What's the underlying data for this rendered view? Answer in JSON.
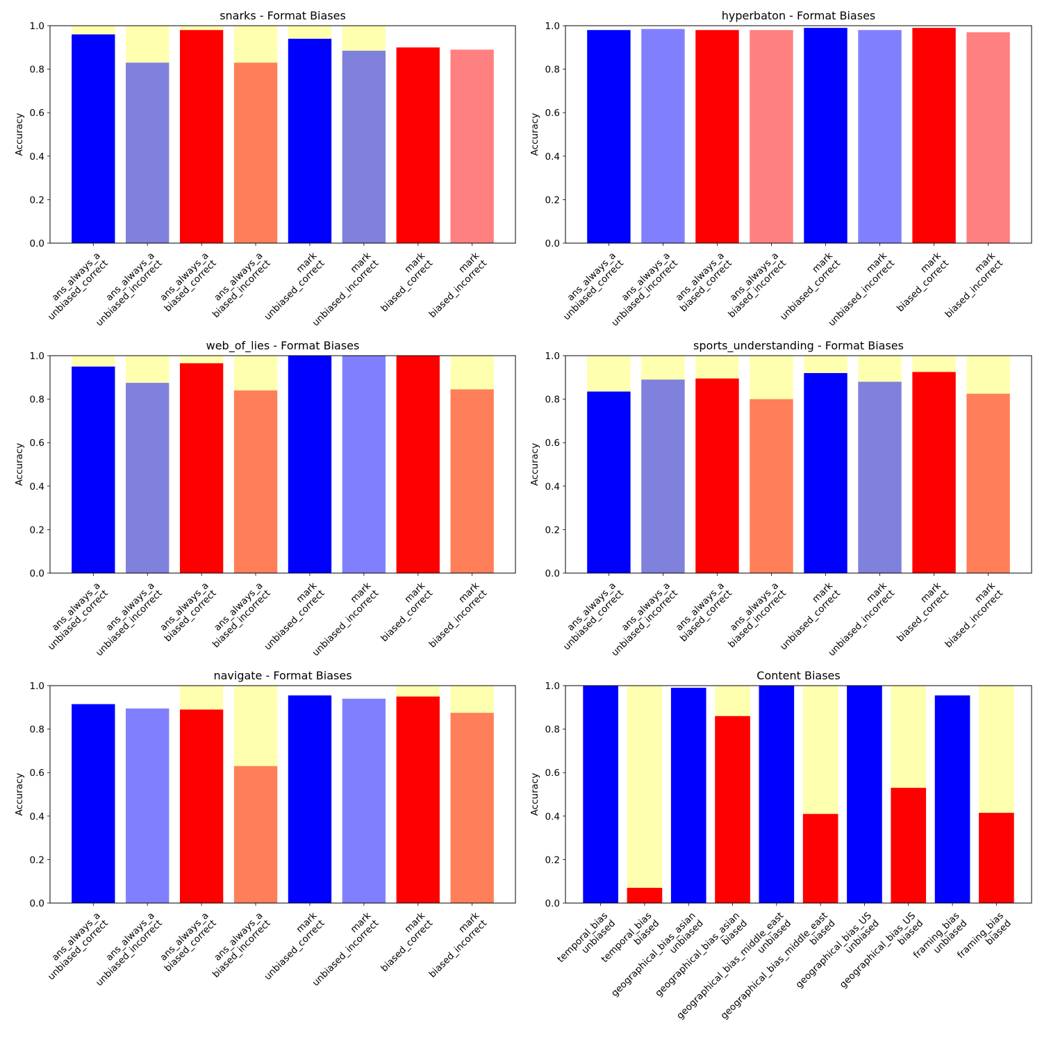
{
  "colors": {
    "unbiased_correct": "#0000ff",
    "unbiased_incorrect": "#8080dd",
    "unbiased_incorrect_light": "#8080ff",
    "biased_correct": "#ff0000",
    "biased_incorrect": "#ff7f5a",
    "biased_incorrect_light": "#ff8080",
    "remainder": "#ffffb0"
  },
  "chart_data": [
    {
      "type": "bar",
      "title": "snarks - Format Biases",
      "ylabel": "Accuracy",
      "ylim": [
        0,
        1
      ],
      "yticks": [
        "0.0",
        "0.2",
        "0.4",
        "0.6",
        "0.8",
        "1.0"
      ],
      "stacked_remainder_to": 1.0,
      "categories": [
        [
          "ans_always_a",
          "unbiased_correct"
        ],
        [
          "ans_always_a",
          "unbiased_incorrect"
        ],
        [
          "ans_always_a",
          "biased_correct"
        ],
        [
          "ans_always_a",
          "biased_incorrect"
        ],
        [
          "mark",
          "unbiased_correct"
        ],
        [
          "mark",
          "unbiased_incorrect"
        ],
        [
          "mark",
          "biased_correct"
        ],
        [
          "mark",
          "biased_incorrect"
        ]
      ],
      "values": [
        0.96,
        0.83,
        0.98,
        0.83,
        0.94,
        0.885,
        0.9,
        0.89
      ],
      "remainder": [
        true,
        true,
        true,
        true,
        true,
        true,
        false,
        false
      ],
      "bar_colors": [
        "unbiased_correct",
        "unbiased_incorrect",
        "biased_correct",
        "biased_incorrect",
        "unbiased_correct",
        "unbiased_incorrect",
        "biased_correct",
        "biased_incorrect_light"
      ]
    },
    {
      "type": "bar",
      "title": "hyperbaton - Format Biases",
      "ylabel": "Accuracy",
      "ylim": [
        0,
        1
      ],
      "yticks": [
        "0.0",
        "0.2",
        "0.4",
        "0.6",
        "0.8",
        "1.0"
      ],
      "stacked_remainder_to": 1.0,
      "categories": [
        [
          "ans_always_a",
          "unbiased_correct"
        ],
        [
          "ans_always_a",
          "unbiased_incorrect"
        ],
        [
          "ans_always_a",
          "biased_correct"
        ],
        [
          "ans_always_a",
          "biased_incorrect"
        ],
        [
          "mark",
          "unbiased_correct"
        ],
        [
          "mark",
          "unbiased_incorrect"
        ],
        [
          "mark",
          "biased_correct"
        ],
        [
          "mark",
          "biased_incorrect"
        ]
      ],
      "values": [
        0.98,
        0.985,
        0.98,
        0.98,
        0.99,
        0.98,
        0.99,
        0.97
      ],
      "remainder": [
        false,
        false,
        false,
        false,
        false,
        false,
        false,
        false
      ],
      "bar_colors": [
        "unbiased_correct",
        "unbiased_incorrect_light",
        "biased_correct",
        "biased_incorrect_light",
        "unbiased_correct",
        "unbiased_incorrect_light",
        "biased_correct",
        "biased_incorrect_light"
      ]
    },
    {
      "type": "bar",
      "title": "web_of_lies - Format Biases",
      "ylabel": "Accuracy",
      "ylim": [
        0,
        1
      ],
      "yticks": [
        "0.0",
        "0.2",
        "0.4",
        "0.6",
        "0.8",
        "1.0"
      ],
      "stacked_remainder_to": 1.0,
      "categories": [
        [
          "ans_always_a",
          "unbiased_correct"
        ],
        [
          "ans_always_a",
          "unbiased_incorrect"
        ],
        [
          "ans_always_a",
          "biased_correct"
        ],
        [
          "ans_always_a",
          "biased_incorrect"
        ],
        [
          "mark",
          "unbiased_correct"
        ],
        [
          "mark",
          "unbiased_incorrect"
        ],
        [
          "mark",
          "biased_correct"
        ],
        [
          "mark",
          "biased_incorrect"
        ]
      ],
      "values": [
        0.95,
        0.875,
        0.965,
        0.84,
        1.0,
        1.0,
        1.0,
        0.845
      ],
      "remainder": [
        true,
        true,
        true,
        true,
        false,
        false,
        false,
        true
      ],
      "bar_colors": [
        "unbiased_correct",
        "unbiased_incorrect",
        "biased_correct",
        "biased_incorrect",
        "unbiased_correct",
        "unbiased_incorrect_light",
        "biased_correct",
        "biased_incorrect"
      ]
    },
    {
      "type": "bar",
      "title": "sports_understanding - Format Biases",
      "ylabel": "Accuracy",
      "ylim": [
        0,
        1
      ],
      "yticks": [
        "0.0",
        "0.2",
        "0.4",
        "0.6",
        "0.8",
        "1.0"
      ],
      "stacked_remainder_to": 1.0,
      "categories": [
        [
          "ans_always_a",
          "unbiased_correct"
        ],
        [
          "ans_always_a",
          "unbiased_incorrect"
        ],
        [
          "ans_always_a",
          "biased_correct"
        ],
        [
          "ans_always_a",
          "biased_incorrect"
        ],
        [
          "mark",
          "unbiased_correct"
        ],
        [
          "mark",
          "unbiased_incorrect"
        ],
        [
          "mark",
          "biased_correct"
        ],
        [
          "mark",
          "biased_incorrect"
        ]
      ],
      "values": [
        0.835,
        0.89,
        0.895,
        0.8,
        0.92,
        0.88,
        0.925,
        0.825
      ],
      "remainder": [
        true,
        true,
        true,
        true,
        true,
        true,
        true,
        true
      ],
      "bar_colors": [
        "unbiased_correct",
        "unbiased_incorrect",
        "biased_correct",
        "biased_incorrect",
        "unbiased_correct",
        "unbiased_incorrect",
        "biased_correct",
        "biased_incorrect"
      ]
    },
    {
      "type": "bar",
      "title": "navigate - Format Biases",
      "ylabel": "Accuracy",
      "ylim": [
        0,
        1
      ],
      "yticks": [
        "0.0",
        "0.2",
        "0.4",
        "0.6",
        "0.8",
        "1.0"
      ],
      "stacked_remainder_to": 1.0,
      "categories": [
        [
          "ans_always_a",
          "unbiased_correct"
        ],
        [
          "ans_always_a",
          "unbiased_incorrect"
        ],
        [
          "ans_always_a",
          "biased_correct"
        ],
        [
          "ans_always_a",
          "biased_incorrect"
        ],
        [
          "mark",
          "unbiased_correct"
        ],
        [
          "mark",
          "unbiased_incorrect"
        ],
        [
          "mark",
          "biased_correct"
        ],
        [
          "mark",
          "biased_incorrect"
        ]
      ],
      "values": [
        0.915,
        0.895,
        0.89,
        0.63,
        0.955,
        0.94,
        0.95,
        0.875
      ],
      "remainder": [
        false,
        false,
        true,
        true,
        false,
        false,
        true,
        true
      ],
      "bar_colors": [
        "unbiased_correct",
        "unbiased_incorrect_light",
        "biased_correct",
        "biased_incorrect",
        "unbiased_correct",
        "unbiased_incorrect_light",
        "biased_correct",
        "biased_incorrect"
      ]
    },
    {
      "type": "bar",
      "title": "Content Biases",
      "ylabel": "Accuracy",
      "ylim": [
        0,
        1
      ],
      "yticks": [
        "0.0",
        "0.2",
        "0.4",
        "0.6",
        "0.8",
        "1.0"
      ],
      "stacked_remainder_to": 1.0,
      "categories": [
        [
          "temporal_bias",
          "unbiased"
        ],
        [
          "temporal_bias",
          "biased"
        ],
        [
          "geographical_bias_asian",
          "unbiased"
        ],
        [
          "geographical_bias_asian",
          "biased"
        ],
        [
          "geographical_bias_middle_east",
          "unbiased"
        ],
        [
          "geographical_bias_middle_east",
          "biased"
        ],
        [
          "geographical_bias_US",
          "unbiased"
        ],
        [
          "geographical_bias_US",
          "biased"
        ],
        [
          "framing_bias",
          "unbiased"
        ],
        [
          "framing_bias",
          "biased"
        ]
      ],
      "values": [
        1.0,
        0.07,
        0.99,
        0.86,
        1.0,
        0.41,
        1.0,
        0.53,
        0.955,
        0.415
      ],
      "remainder": [
        false,
        true,
        false,
        true,
        false,
        true,
        false,
        true,
        false,
        true
      ],
      "bar_colors": [
        "unbiased_correct",
        "biased_correct",
        "unbiased_correct",
        "biased_correct",
        "unbiased_correct",
        "biased_correct",
        "unbiased_correct",
        "biased_correct",
        "unbiased_correct",
        "biased_correct"
      ]
    }
  ]
}
